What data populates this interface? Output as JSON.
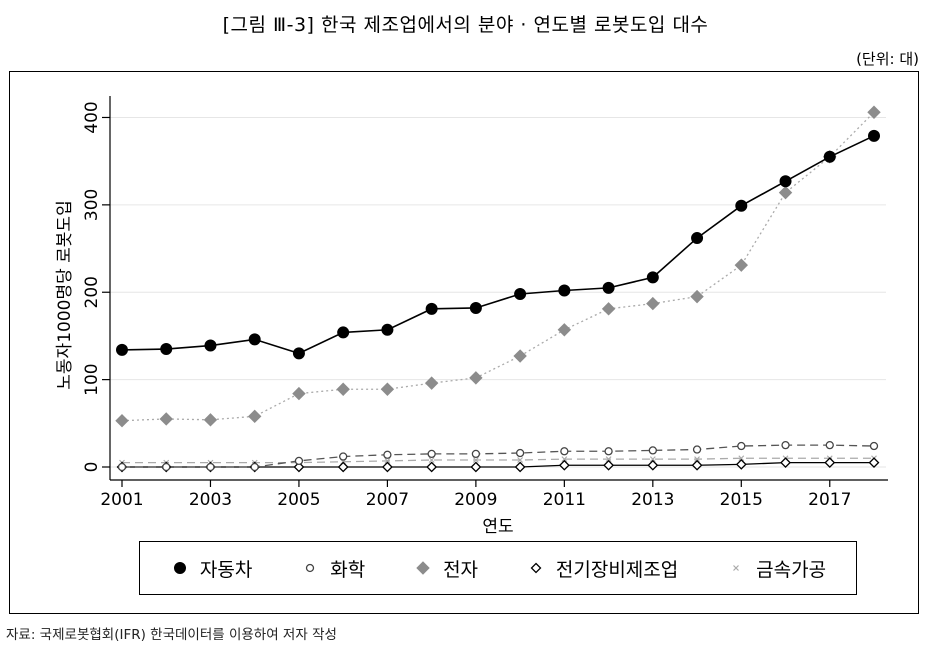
{
  "figure": {
    "title": "[그림 Ⅲ-3] 한국 제조업에서의 분야 · 연도별 로봇도입 대수",
    "unit": "(단위: 대)",
    "source": "자료: 국제로봇협회(IFR) 한국데이터를 이용하여 저자 작성"
  },
  "chart_data": {
    "type": "line",
    "title": "[그림 Ⅲ-3] 한국 제조업에서의 분야 · 연도별 로봇도입 대수",
    "xlabel": "연도",
    "ylabel": "노동자1000명당 로봇도입",
    "xlim": [
      2001,
      2018
    ],
    "ylim": [
      0,
      420
    ],
    "x_ticks": [
      "2001",
      "2003",
      "2005",
      "2007",
      "2009",
      "2011",
      "2013",
      "2015",
      "2017"
    ],
    "y_ticks": [
      "0",
      "100",
      "200",
      "300",
      "400"
    ],
    "grid": true,
    "legend_position": "bottom",
    "x": [
      2001,
      2002,
      2003,
      2004,
      2005,
      2006,
      2007,
      2008,
      2009,
      2010,
      2011,
      2012,
      2013,
      2014,
      2015,
      2016,
      2017,
      2018
    ],
    "series": [
      {
        "name": "자동차",
        "marker": "filled-circle",
        "line": "solid",
        "color": "#000000",
        "values": [
          134,
          135,
          139,
          146,
          130,
          154,
          157,
          181,
          182,
          198,
          202,
          205,
          217,
          262,
          299,
          327,
          355,
          379
        ]
      },
      {
        "name": "화학",
        "marker": "hollow-circle",
        "line": "dashed",
        "color": "#555555",
        "values": [
          0,
          0,
          0,
          0,
          7,
          12,
          14,
          15,
          15,
          16,
          18,
          18,
          19,
          20,
          24,
          25,
          25,
          24
        ]
      },
      {
        "name": "전자",
        "marker": "filled-diamond",
        "line": "dotted",
        "color": "#8c8c8c",
        "values": [
          53,
          55,
          54,
          58,
          84,
          89,
          89,
          96,
          102,
          127,
          157,
          181,
          187,
          195,
          231,
          314,
          355,
          406
        ]
      },
      {
        "name": "전기장비제조업",
        "marker": "hollow-diamond",
        "line": "solid",
        "color": "#000000",
        "values": [
          0,
          0,
          0,
          0,
          0,
          0,
          0,
          0,
          0,
          0,
          2,
          2,
          2,
          2,
          3,
          5,
          5,
          5
        ]
      },
      {
        "name": "금속가공",
        "marker": "x",
        "line": "dashed",
        "color": "#aaaaaa",
        "values": [
          5,
          5,
          5,
          5,
          5,
          6,
          7,
          8,
          8,
          8,
          9,
          9,
          9,
          9,
          10,
          10,
          10,
          10
        ]
      }
    ]
  }
}
